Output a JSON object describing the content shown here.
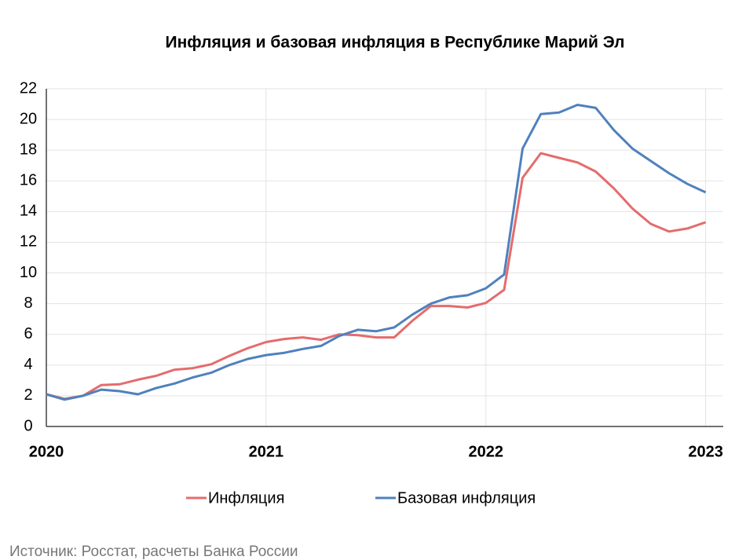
{
  "chart_data": {
    "type": "line",
    "title": "Инфляция и базовая инфляция в Республике Марий Эл",
    "source": "Источник: Росстат, расчеты Банка России",
    "x": [
      2020,
      2020.083,
      2020.167,
      2020.25,
      2020.333,
      2020.417,
      2020.5,
      2020.583,
      2020.667,
      2020.75,
      2020.833,
      2020.917,
      2021,
      2021.083,
      2021.167,
      2021.25,
      2021.333,
      2021.417,
      2021.5,
      2021.583,
      2021.667,
      2021.75,
      2021.833,
      2021.917,
      2022,
      2022.083,
      2022.167,
      2022.25,
      2022.333,
      2022.417,
      2022.5,
      2022.583,
      2022.667,
      2022.75,
      2022.833,
      2022.917,
      2023
    ],
    "series": [
      {
        "name": "Инфляция",
        "color": "#e46c6c",
        "values": [
          2.1,
          1.8,
          2.0,
          2.7,
          2.75,
          3.05,
          3.3,
          3.7,
          3.8,
          4.05,
          4.6,
          5.1,
          5.5,
          5.7,
          5.8,
          5.65,
          6.0,
          5.95,
          5.8,
          5.8,
          6.9,
          7.85,
          7.85,
          7.75,
          8.05,
          8.9,
          16.2,
          17.8,
          17.5,
          17.2,
          16.6,
          15.5,
          14.2,
          13.2,
          12.7,
          12.9,
          13.3
        ]
      },
      {
        "name": "Базовая инфляция",
        "color": "#4f81bd",
        "values": [
          2.1,
          1.75,
          2.0,
          2.4,
          2.3,
          2.1,
          2.5,
          2.8,
          3.2,
          3.5,
          4.0,
          4.4,
          4.65,
          4.8,
          5.05,
          5.25,
          5.9,
          6.3,
          6.2,
          6.45,
          7.3,
          8.0,
          8.4,
          8.55,
          9.0,
          9.9,
          18.1,
          20.35,
          20.45,
          20.95,
          20.75,
          19.3,
          18.1,
          17.3,
          16.5,
          15.8,
          15.25
        ]
      }
    ],
    "xlim": [
      2020,
      2023.08
    ],
    "xticks": [
      2020,
      2021,
      2022,
      2023
    ],
    "ylim": [
      0,
      22
    ],
    "yticks": [
      0,
      2,
      4,
      6,
      8,
      10,
      12,
      14,
      16,
      18,
      20,
      22
    ],
    "grid": true
  }
}
